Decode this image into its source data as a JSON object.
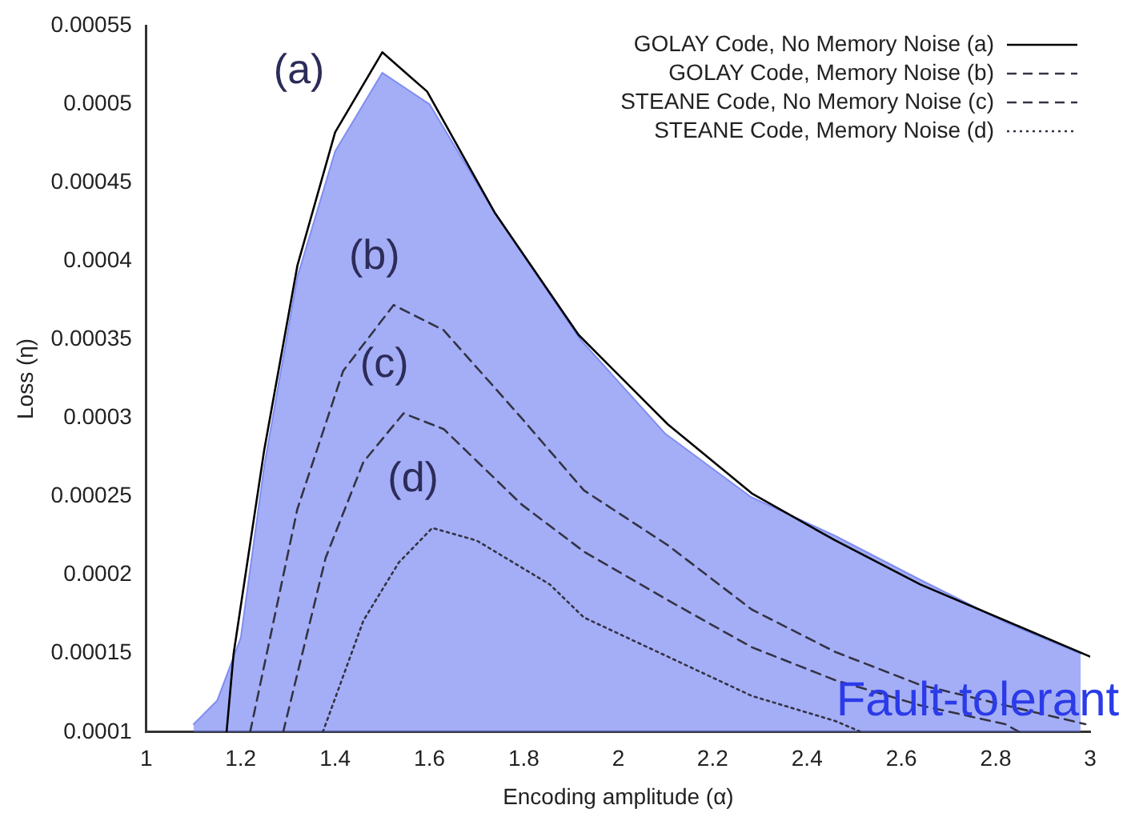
{
  "chart_data": {
    "type": "line",
    "xlabel": "Encoding amplitude (α)",
    "ylabel": "Loss (η)",
    "xlim": [
      1,
      3
    ],
    "xticks": [
      1,
      1.2,
      1.4,
      1.6,
      1.8,
      2,
      2.2,
      2.4,
      2.6,
      2.8,
      3
    ],
    "ylim": [
      0.0001,
      0.00055
    ],
    "yticks": [
      0.0001,
      0.00015,
      0.0002,
      0.00025,
      0.0003,
      0.00035,
      0.0004,
      0.00045,
      0.0005,
      0.00055
    ],
    "grid": false,
    "legend": "top right",
    "marker": "none",
    "series": [
      {
        "name": "Fault-tolerant",
        "type": "area",
        "color": "#6878f0",
        "x": [
          1.1,
          1.15,
          1.2,
          1.25,
          1.32,
          1.4,
          1.5,
          1.6,
          1.74,
          1.92,
          2.1,
          2.28,
          2.46,
          2.64,
          2.82,
          2.98
        ],
        "values": [
          0.000105,
          0.00012,
          0.00016,
          0.00027,
          0.00039,
          0.00047,
          0.00052,
          0.0005,
          0.00043,
          0.00035,
          0.00029,
          0.00025,
          0.000225,
          0.000197,
          0.00017,
          0.00015
        ]
      },
      {
        "name": "GOLAY Code, No Memory Noise (a)",
        "type": "line",
        "line_style": "solid",
        "color": "#000000",
        "x": [
          1.17,
          1.185,
          1.25,
          1.32,
          1.4,
          1.5,
          1.595,
          1.738,
          1.916,
          2.105,
          2.283,
          2.46,
          2.64,
          2.82,
          3
        ],
        "values": [
          0.0001,
          0.00015,
          0.00028,
          0.000397,
          0.000482,
          0.000533,
          0.000508,
          0.000431,
          0.000353,
          0.000296,
          0.000252,
          0.000222,
          0.000194,
          0.000171,
          0.000148
        ]
      },
      {
        "name": "GOLAY Code, Memory Noise (b)",
        "type": "line",
        "line_style": "dashed",
        "color": "#333344",
        "x": [
          1.22,
          1.32,
          1.417,
          1.524,
          1.63,
          1.795,
          1.927,
          2.105,
          2.283,
          2.46,
          2.64,
          2.82,
          2.99
        ],
        "values": [
          0.0001,
          0.000242,
          0.00033,
          0.000372,
          0.000356,
          0.0003,
          0.000254,
          0.000219,
          0.000178,
          0.000151,
          0.00013,
          0.000117,
          0.000105
        ]
      },
      {
        "name": "STEANE Code, No Memory Noise (c)",
        "type": "line",
        "line_style": "dashed",
        "color": "#333344",
        "x": [
          1.29,
          1.38,
          1.46,
          1.545,
          1.63,
          1.795,
          1.927,
          2.105,
          2.283,
          2.46,
          2.64,
          2.82,
          2.85
        ],
        "values": [
          0.0001,
          0.000211,
          0.000272,
          0.000303,
          0.000293,
          0.000245,
          0.000215,
          0.000184,
          0.000154,
          0.000133,
          0.000117,
          0.000105,
          0.0001
        ]
      },
      {
        "name": "STEANE Code, Memory Noise (d)",
        "type": "line",
        "line_style": "dotted",
        "color": "#333344",
        "x": [
          1.374,
          1.46,
          1.535,
          1.606,
          1.7,
          1.855,
          1.927,
          2.105,
          2.283,
          2.46,
          2.515
        ],
        "values": [
          0.0001,
          0.000171,
          0.000208,
          0.00023,
          0.000222,
          0.000194,
          0.000173,
          0.000148,
          0.000123,
          0.000107,
          0.0001
        ]
      }
    ],
    "annotations": [
      "(a)",
      "(b)",
      "(c)",
      "(d)"
    ]
  }
}
